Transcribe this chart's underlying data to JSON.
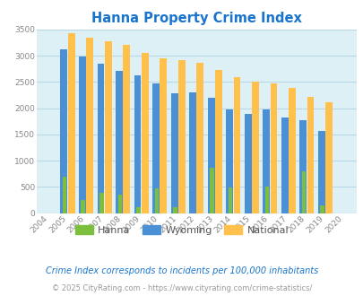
{
  "title": "Hanna Property Crime Index",
  "title_color": "#1874CD",
  "years": [
    2004,
    2005,
    2006,
    2007,
    2008,
    2009,
    2010,
    2011,
    2012,
    2013,
    2014,
    2015,
    2016,
    2017,
    2018,
    2019,
    2020
  ],
  "hanna": [
    0,
    700,
    250,
    380,
    350,
    120,
    470,
    120,
    0,
    870,
    490,
    0,
    510,
    0,
    790,
    150,
    0
  ],
  "wyoming": [
    0,
    3130,
    2980,
    2850,
    2720,
    2620,
    2470,
    2290,
    2310,
    2200,
    1970,
    1900,
    1970,
    1830,
    1770,
    1570,
    0
  ],
  "national": [
    0,
    3430,
    3340,
    3270,
    3210,
    3050,
    2960,
    2910,
    2860,
    2730,
    2600,
    2510,
    2480,
    2380,
    2210,
    2110,
    0
  ],
  "ylim": [
    0,
    3500
  ],
  "yticks": [
    0,
    500,
    1000,
    1500,
    2000,
    2500,
    3000,
    3500
  ],
  "hanna_color": "#7CBF3F",
  "wyoming_color": "#4B8FD5",
  "national_color": "#FFC04C",
  "bg_color": "#DCF0F5",
  "grid_color": "#B8D8E8",
  "subtitle": "Crime Index corresponds to incidents per 100,000 inhabitants",
  "footer": "© 2025 CityRating.com - https://www.cityrating.com/crime-statistics/",
  "subtitle_color": "#1874CD",
  "footer_color": "#999999",
  "tick_color": "#888888"
}
